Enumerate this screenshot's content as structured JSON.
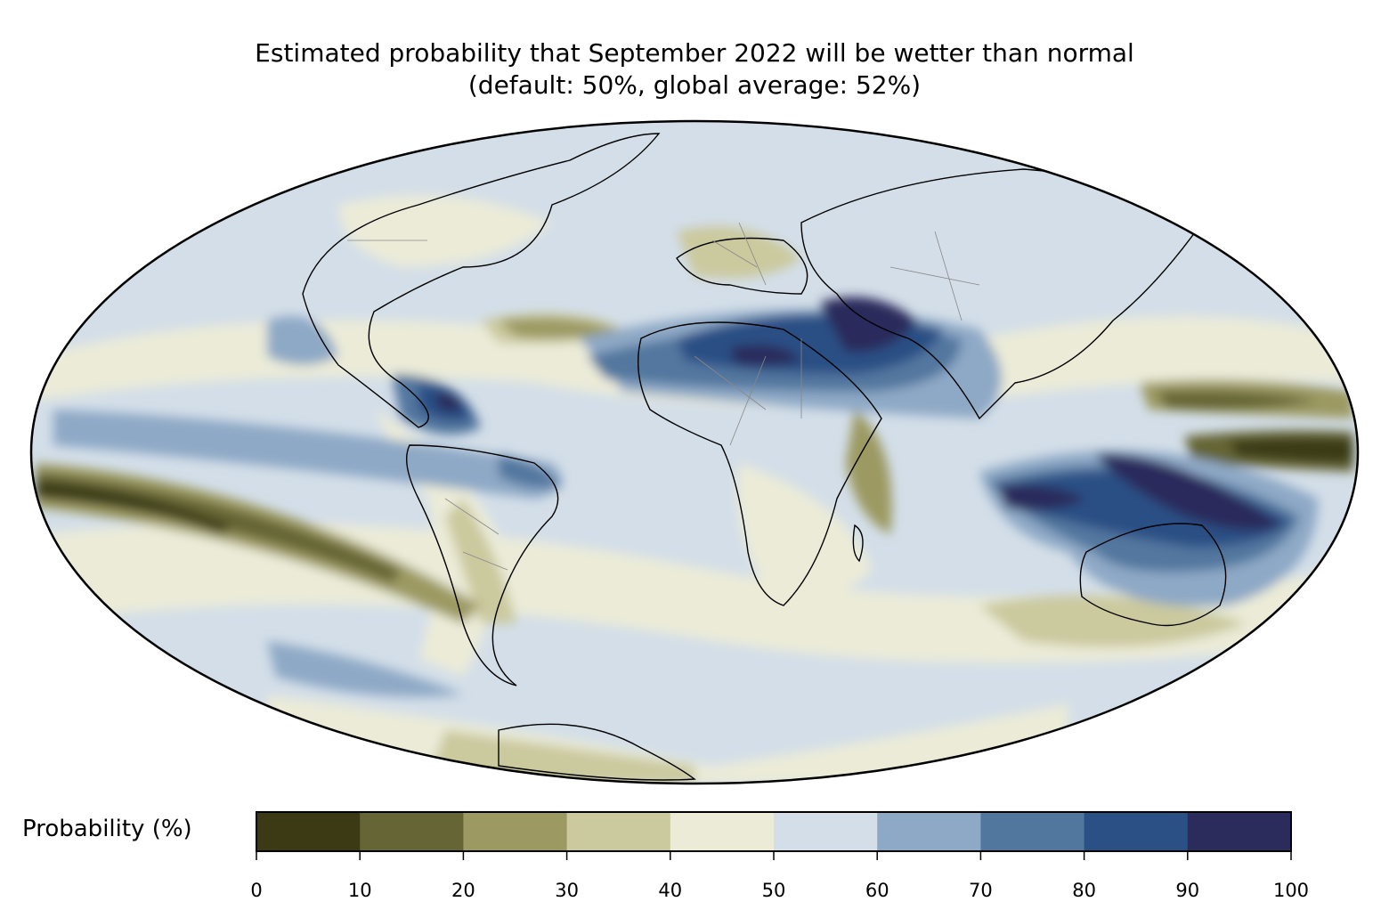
{
  "title": {
    "line1": "Estimated probability that September 2022 will be wetter than normal",
    "line2": "(default: 50%, global average: 52%)"
  },
  "colorbar": {
    "label": "Probability (%)",
    "ticks": [
      "0",
      "10",
      "20",
      "30",
      "40",
      "50",
      "60",
      "70",
      "80",
      "90",
      "100"
    ],
    "bins": [
      {
        "range": [
          0,
          10
        ],
        "color": "#3b3a14"
      },
      {
        "range": [
          10,
          20
        ],
        "color": "#656536"
      },
      {
        "range": [
          20,
          30
        ],
        "color": "#9c9a62"
      },
      {
        "range": [
          30,
          40
        ],
        "color": "#cbc99e"
      },
      {
        "range": [
          40,
          50
        ],
        "color": "#ebebd8"
      },
      {
        "range": [
          50,
          60
        ],
        "color": "#d3dee8"
      },
      {
        "range": [
          60,
          70
        ],
        "color": "#8ea9c6"
      },
      {
        "range": [
          70,
          80
        ],
        "color": "#52779f"
      },
      {
        "range": [
          80,
          90
        ],
        "color": "#2b5085"
      },
      {
        "range": [
          90,
          100
        ],
        "color": "#2b2b5c"
      }
    ]
  },
  "map": {
    "projection": "Mollweide",
    "ocean_fill": "#d3dee8",
    "coastline_color": "#000000",
    "border_color": "#888888"
  }
}
